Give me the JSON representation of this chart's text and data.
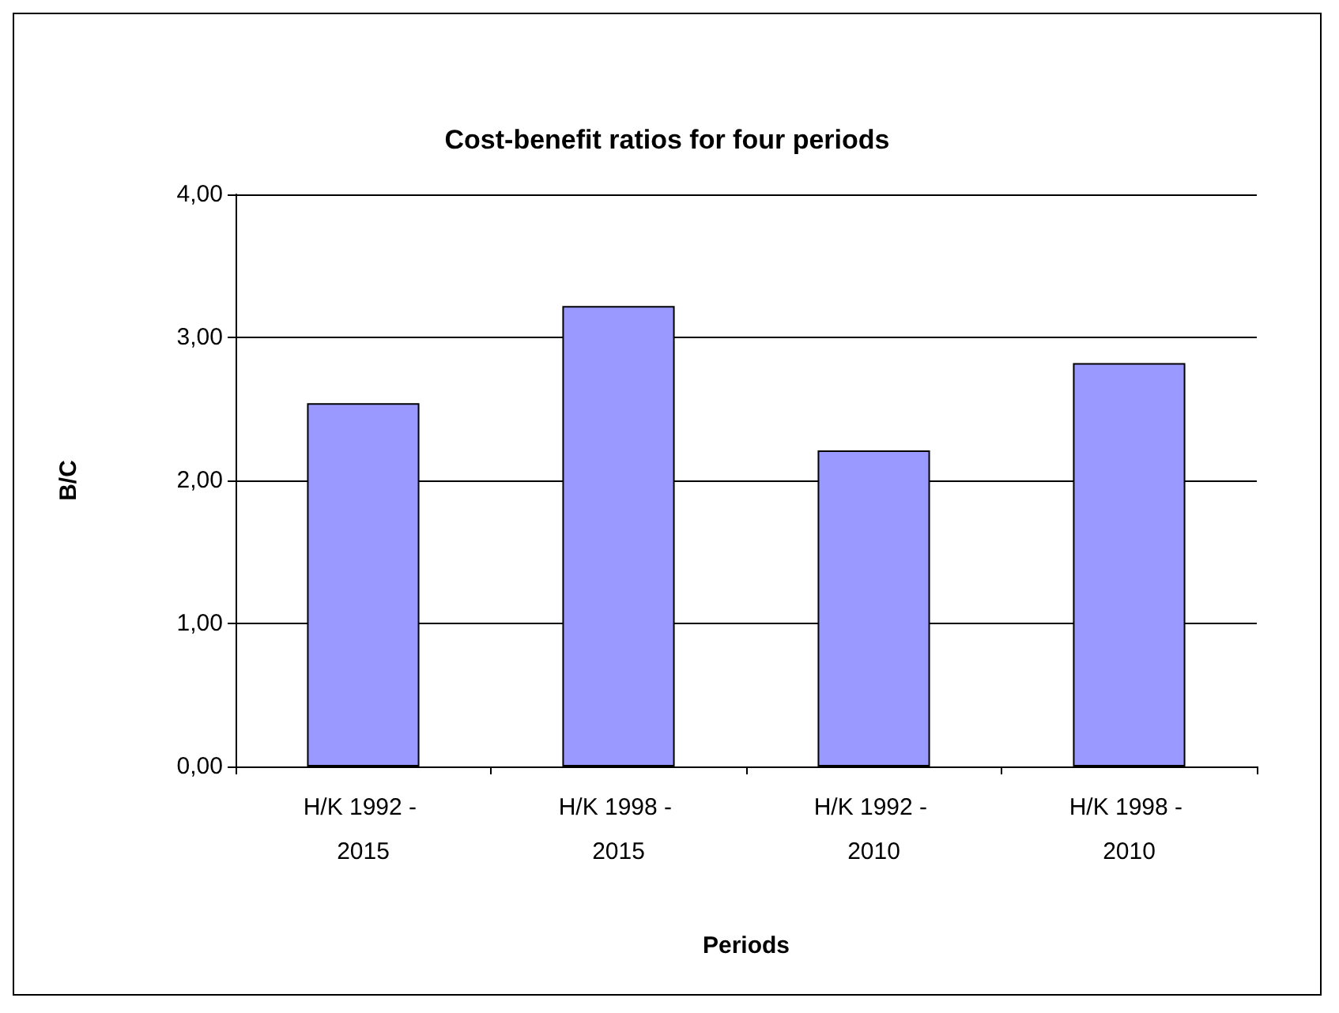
{
  "chart_data": {
    "type": "bar",
    "title": "Cost-benefit ratios for four periods",
    "xlabel": "Periods",
    "ylabel": "B/C",
    "categories": [
      "H/K 1992 - 2015",
      "H/K 1998 - 2015",
      "H/K 1992 - 2010",
      "H/K 1998 - 2010"
    ],
    "values": [
      2.54,
      3.22,
      2.21,
      2.82
    ],
    "color": "#9999ff",
    "ylim": [
      0,
      4
    ],
    "yticks": [
      {
        "value": 0,
        "label": "0,00"
      },
      {
        "value": 1,
        "label": "1,00"
      },
      {
        "value": 2,
        "label": "2,00"
      },
      {
        "value": 3,
        "label": "3,00"
      },
      {
        "value": 4,
        "label": "4,00"
      }
    ],
    "grid": "y"
  }
}
